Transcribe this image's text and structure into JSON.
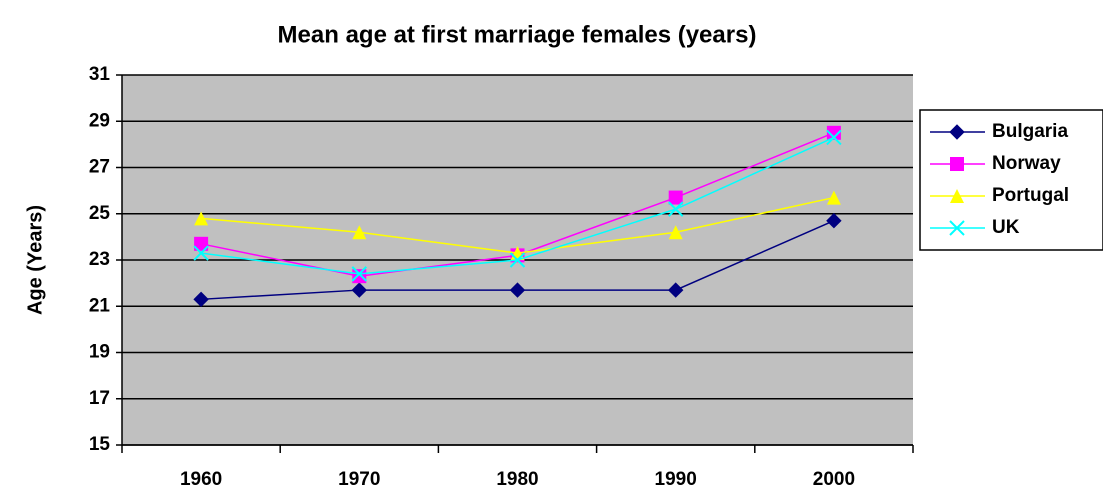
{
  "chart_data": {
    "type": "line",
    "title": "Mean age at first marriage females (years)",
    "y_label": "Age (Years)",
    "categories": [
      "1960",
      "1970",
      "1980",
      "1990",
      "2000"
    ],
    "series": [
      {
        "name": "Bulgaria",
        "color": "#000080",
        "marker": "diamond",
        "values": [
          21.3,
          21.7,
          21.7,
          21.7,
          24.7
        ]
      },
      {
        "name": "Norway",
        "color": "#FF00FF",
        "marker": "square",
        "values": [
          23.7,
          22.3,
          23.2,
          25.7,
          28.5
        ]
      },
      {
        "name": "Portugal",
        "color": "#FFFF00",
        "marker": "triangle",
        "values": [
          24.8,
          24.2,
          23.3,
          24.2,
          25.7
        ]
      },
      {
        "name": "UK",
        "color": "#00FFFF",
        "marker": "x",
        "values": [
          23.3,
          22.4,
          23.0,
          25.2,
          28.3
        ]
      }
    ],
    "ylim": [
      15,
      31
    ],
    "yticks": [
      15,
      17,
      19,
      21,
      23,
      25,
      27,
      29,
      31
    ],
    "grid": true,
    "legend": "right"
  }
}
